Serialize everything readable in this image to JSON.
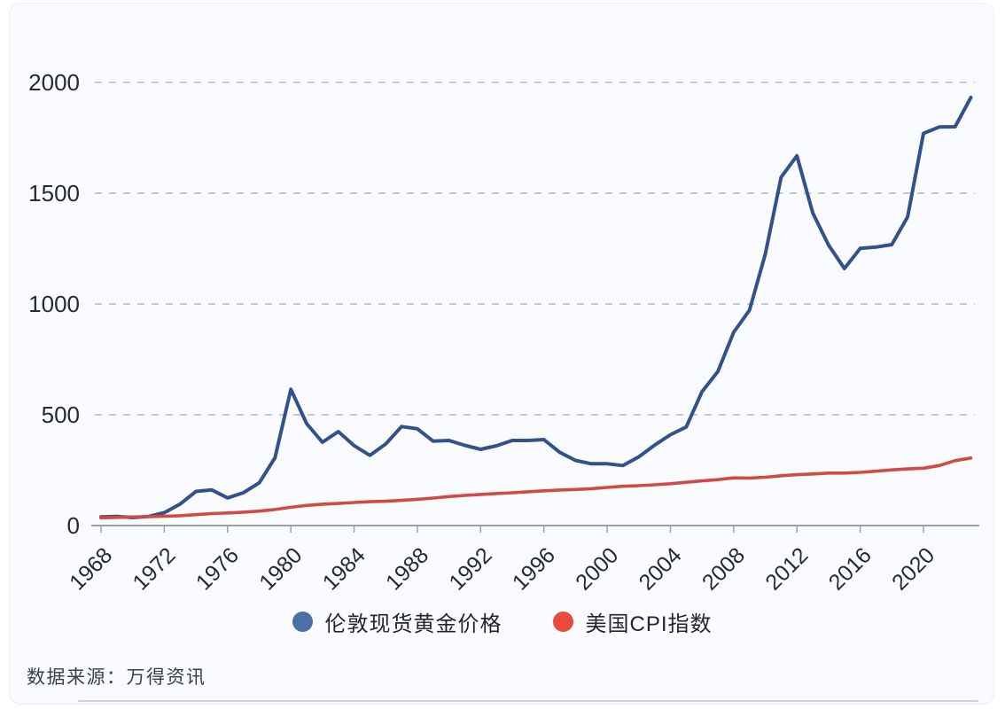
{
  "legend": {
    "items": [
      {
        "label": "伦敦现货黄金价格",
        "dot_color": "#4a70a8"
      },
      {
        "label": "美国CPI指数",
        "dot_color": "#e64b3c"
      }
    ]
  },
  "source": {
    "text": "数据来源：万得资讯"
  },
  "chart_data": {
    "type": "line",
    "title": "",
    "xlabel": "",
    "ylabel": "",
    "x": [
      1968,
      1969,
      1970,
      1971,
      1972,
      1973,
      1974,
      1975,
      1976,
      1977,
      1978,
      1979,
      1980,
      1981,
      1982,
      1983,
      1984,
      1985,
      1986,
      1987,
      1988,
      1989,
      1990,
      1991,
      1992,
      1993,
      1994,
      1995,
      1996,
      1997,
      1998,
      1999,
      2000,
      2001,
      2002,
      2003,
      2004,
      2005,
      2006,
      2007,
      2008,
      2009,
      2010,
      2011,
      2012,
      2013,
      2014,
      2015,
      2016,
      2017,
      2018,
      2019,
      2020,
      2021,
      2022,
      2023
    ],
    "series": [
      {
        "name": "伦敦现货黄金价格",
        "color": "#33518b",
        "stroke_width": 4,
        "values": [
          39,
          41,
          36,
          41,
          58,
          97,
          154,
          161,
          125,
          148,
          193,
          306,
          615,
          460,
          376,
          424,
          361,
          317,
          368,
          447,
          437,
          381,
          384,
          362,
          344,
          360,
          384,
          384,
          388,
          331,
          294,
          279,
          279,
          271,
          310,
          363,
          410,
          445,
          604,
          695,
          872,
          972,
          1225,
          1572,
          1669,
          1411,
          1266,
          1160,
          1251,
          1257,
          1268,
          1393,
          1770,
          1799,
          1800,
          1932
        ]
      },
      {
        "name": "美国CPI指数",
        "color": "#d34a43",
        "stroke_width": 3.6,
        "values": [
          34.8,
          36.7,
          38.8,
          40.5,
          41.8,
          44.4,
          49.3,
          53.8,
          56.9,
          60.6,
          65.2,
          72.6,
          82.4,
          90.9,
          96.5,
          99.6,
          103.9,
          107.6,
          109.6,
          113.6,
          118.3,
          124.0,
          130.7,
          136.2,
          140.3,
          144.5,
          148.2,
          152.4,
          156.9,
          160.5,
          163.0,
          166.6,
          172.2,
          177.1,
          179.9,
          184.0,
          188.9,
          195.3,
          201.6,
          207.3,
          215.3,
          214.5,
          218.1,
          224.9,
          229.6,
          233.0,
          236.7,
          237.0,
          240.0,
          245.1,
          251.1,
          255.7,
          258.8,
          271.0,
          292.7,
          305.0
        ]
      }
    ],
    "xticks": [
      1968,
      1972,
      1976,
      1980,
      1984,
      1988,
      1992,
      1996,
      2000,
      2004,
      2008,
      2012,
      2016,
      2020
    ],
    "yticks": [
      0,
      500,
      1000,
      1500,
      2000
    ],
    "xlim": [
      1968,
      2023.5
    ],
    "ylim": [
      0,
      2100
    ],
    "grid": "horizontal dashed",
    "legend_position": "bottom",
    "colors": {
      "grid": "#c6c9d0",
      "axis": "#9aa1ac",
      "tick_text": "#262a33"
    }
  }
}
